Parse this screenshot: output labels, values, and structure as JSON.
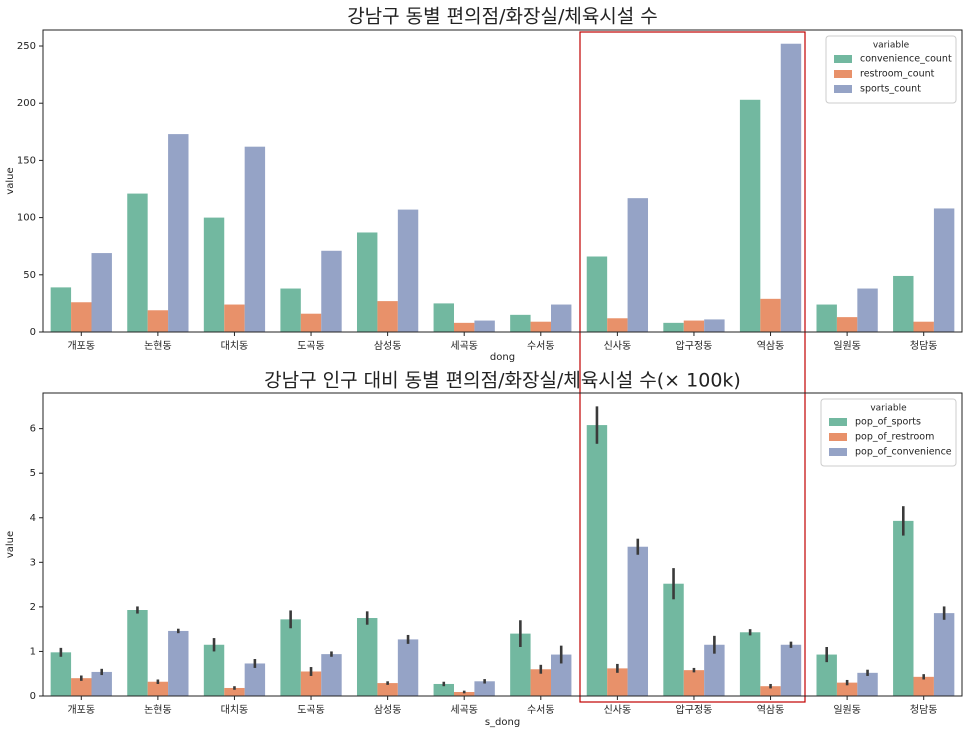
{
  "chart_data": [
    {
      "type": "bar",
      "title": "강남구 동별 편의점/화장실/체육시설 수",
      "x_label": "dong",
      "y_label": "value",
      "categories": [
        "개포동",
        "논현동",
        "대치동",
        "도곡동",
        "삼성동",
        "세곡동",
        "수서동",
        "신사동",
        "압구정동",
        "역삼동",
        "일원동",
        "청담동"
      ],
      "series": [
        {
          "name": "convenience_count",
          "color": "#72b8a0",
          "values": [
            39,
            121,
            100,
            38,
            87,
            25,
            15,
            66,
            8,
            203,
            24,
            49
          ]
        },
        {
          "name": "restroom_count",
          "color": "#e8916a",
          "values": [
            26,
            19,
            24,
            16,
            27,
            8,
            9,
            12,
            10,
            29,
            13,
            9
          ]
        },
        {
          "name": "sports_count",
          "color": "#95a3c6",
          "values": [
            69,
            173,
            162,
            71,
            107,
            10,
            24,
            117,
            11,
            252,
            38,
            108
          ]
        }
      ],
      "legend_title": "variable",
      "legend": "upper right",
      "ylim": [
        0,
        264
      ],
      "yticks": [
        0,
        50,
        100,
        150,
        200,
        250
      ],
      "grid": false
    },
    {
      "type": "bar",
      "title": "강남구 인구 대비 동별 편의점/화장실/체육시설 수(× 100k)",
      "x_label": "s_dong",
      "y_label": "value",
      "categories": [
        "개포동",
        "논현동",
        "대치동",
        "도곡동",
        "삼성동",
        "세곡동",
        "수서동",
        "신사동",
        "압구정동",
        "역삼동",
        "일원동",
        "청담동"
      ],
      "series": [
        {
          "name": "pop_of_sports",
          "color": "#72b8a0",
          "values": [
            0.98,
            1.93,
            1.15,
            1.72,
            1.75,
            0.27,
            1.4,
            6.08,
            2.52,
            1.43,
            0.93,
            3.93
          ],
          "errors": [
            0.1,
            0.08,
            0.15,
            0.2,
            0.15,
            0.05,
            0.3,
            0.42,
            0.35,
            0.07,
            0.17,
            0.33
          ]
        },
        {
          "name": "pop_of_restroom",
          "color": "#e8916a",
          "values": [
            0.4,
            0.32,
            0.18,
            0.55,
            0.29,
            0.09,
            0.6,
            0.62,
            0.58,
            0.22,
            0.3,
            0.43
          ],
          "errors": [
            0.06,
            0.05,
            0.04,
            0.1,
            0.04,
            0.03,
            0.1,
            0.1,
            0.05,
            0.05,
            0.06,
            0.06
          ]
        },
        {
          "name": "pop_of_convenience",
          "color": "#95a3c6",
          "values": [
            0.54,
            1.46,
            0.73,
            0.94,
            1.27,
            0.33,
            0.93,
            3.35,
            1.15,
            1.15,
            0.52,
            1.86
          ],
          "errors": [
            0.07,
            0.05,
            0.1,
            0.06,
            0.1,
            0.05,
            0.2,
            0.18,
            0.2,
            0.07,
            0.07,
            0.15
          ]
        }
      ],
      "legend_title": "variable",
      "legend": "upper right",
      "ylim": [
        0,
        6.8
      ],
      "yticks": [
        0,
        1,
        2,
        3,
        4,
        5,
        6
      ],
      "grid": false
    }
  ]
}
